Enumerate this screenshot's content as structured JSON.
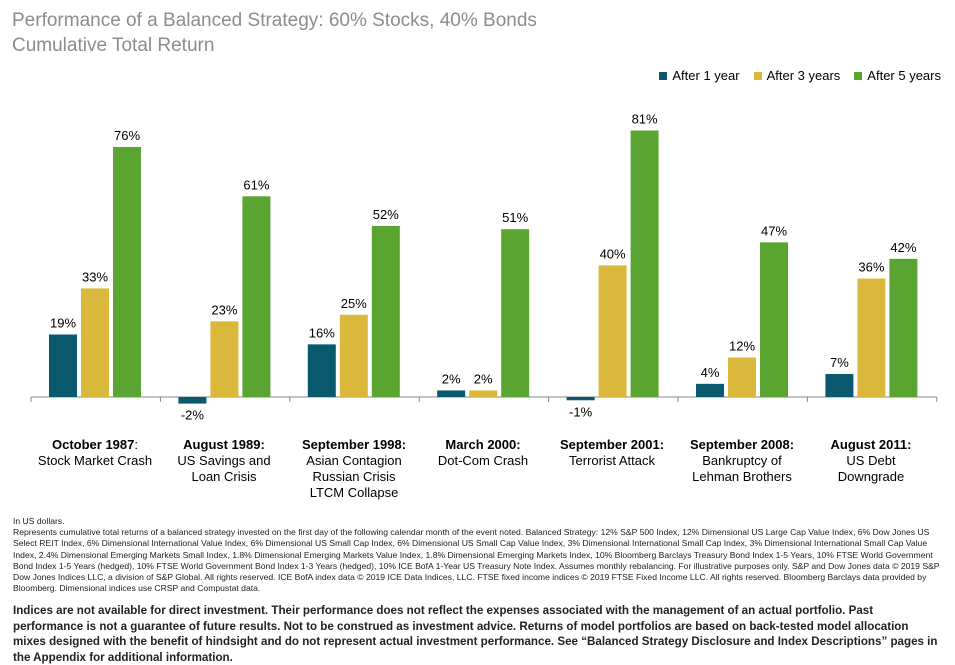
{
  "header": {
    "title": "Performance of a Balanced Strategy: 60% Stocks, 40% Bonds",
    "subtitle": "Cumulative Total Return"
  },
  "colors": {
    "after_1_year": "#0a5a6e",
    "after_3_years": "#d9b83c",
    "after_5_years": "#5aa532",
    "axis": "#888888"
  },
  "chart_data": {
    "type": "bar",
    "title": "Performance of a Balanced Strategy: 60% Stocks, 40% Bonds",
    "subtitle": "Cumulative Total Return",
    "legend_position": "top-right",
    "grid": false,
    "ylim": [
      -5,
      85
    ],
    "categories": [
      {
        "heading": "October 1987",
        "suffix": ":",
        "lines": [
          "Stock Market Crash"
        ]
      },
      {
        "heading": "August 1989:",
        "suffix": "",
        "lines": [
          "US Savings and",
          "Loan Crisis"
        ]
      },
      {
        "heading": "September 1998:",
        "suffix": "",
        "lines": [
          "Asian Contagion",
          "Russian Crisis",
          "LTCM Collapse"
        ]
      },
      {
        "heading": "March 2000:",
        "suffix": "",
        "lines": [
          "Dot-Com Crash"
        ]
      },
      {
        "heading": "September 2001:",
        "suffix": "",
        "lines": [
          "Terrorist Attack"
        ]
      },
      {
        "heading": "September 2008:",
        "suffix": "",
        "lines": [
          "Bankruptcy of",
          "Lehman Brothers"
        ]
      },
      {
        "heading": "August 2011:",
        "suffix": "",
        "lines": [
          "US Debt",
          "Downgrade"
        ]
      }
    ],
    "series": [
      {
        "name": "After 1 year",
        "values": [
          19,
          -2,
          16,
          2,
          -1,
          4,
          7
        ],
        "labels": [
          "19%",
          "-2%",
          "16%",
          "2%",
          "-1%",
          "4%",
          "7%"
        ]
      },
      {
        "name": "After 3 years",
        "values": [
          33,
          23,
          25,
          2,
          40,
          12,
          36
        ],
        "labels": [
          "33%",
          "23%",
          "25%",
          "2%",
          "40%",
          "12%",
          "36%"
        ]
      },
      {
        "name": "After 5 years",
        "values": [
          76,
          61,
          52,
          51,
          81,
          47,
          42
        ],
        "labels": [
          "76%",
          "61%",
          "52%",
          "51%",
          "81%",
          "47%",
          "42%"
        ]
      }
    ]
  },
  "notes": {
    "currency": "In US dollars.",
    "methodology": "Represents cumulative total returns of a balanced strategy invested on the first day of the following calendar month of the event noted. Balanced Strategy: 12% S&P 500 Index, 12% Dimensional US Large Cap Value Index, 6% Dow Jones US Select REIT Index, 6% Dimensional International Value Index, 6% Dimensional US Small Cap Index, 6% Dimensional US Small Cap Value Index, 3% Dimensional International Small Cap Index, 3% Dimensional International Small Cap Value Index, 2.4% Dimensional Emerging Markets Small Index, 1.8% Dimensional Emerging Markets Value Index, 1.8% Dimensional Emerging Markets Index, 10% Bloomberg Barclays Treasury Bond Index 1-5 Years, 10% FTSE World Government Bond Index 1-5 Years (hedged), 10% FTSE World Government Bond Index 1-3 Years (hedged), 10% ICE BofA 1-Year US Treasury Note Index. Assumes monthly rebalancing. For illustrative purposes only. S&P and Dow Jones data © 2019 S&P Dow Jones Indices LLC, a division of S&P Global. All rights reserved. ICE BofA index data © 2019 ICE Data Indices, LLC. FTSE fixed income indices © 2019 FTSE Fixed Income LLC. All rights reserved. Bloomberg Barclays data provided by Bloomberg. Dimensional indices use CRSP and Compustat data.",
    "disclaimer": "Indices are not available for direct investment. Their performance does not reflect the expenses associated with the management of an actual portfolio. Past performance is not a guarantee of future results. Not to be construed as investment advice. Returns of model portfolios are based on back-tested model allocation mixes designed with the benefit of hindsight and do not represent actual investment performance. See “Balanced Strategy Disclosure and Index Descriptions” pages in the Appendix for additional information."
  }
}
